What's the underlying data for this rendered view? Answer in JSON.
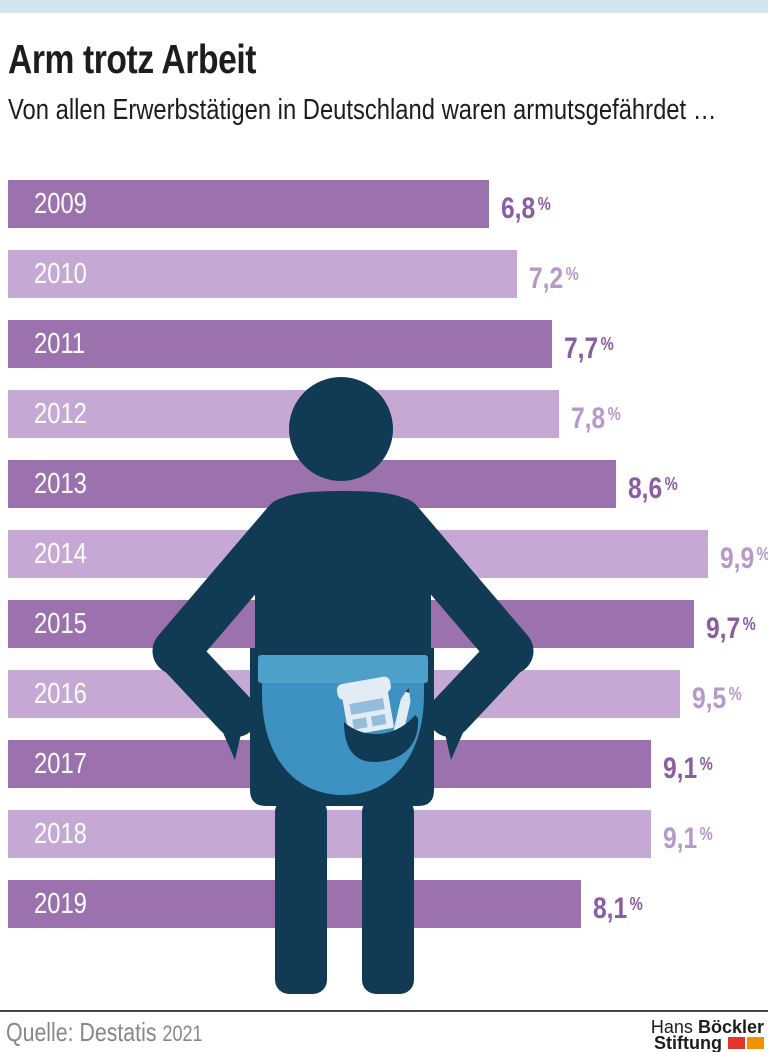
{
  "header": {
    "title": "Arm trotz Arbeit",
    "subtitle": "Von allen Erwerbstätigen in Deutschland waren armutsgefährdet …"
  },
  "chart_data": {
    "type": "bar",
    "orientation": "horizontal",
    "title": "Arm trotz Arbeit",
    "subtitle": "Von allen Erwerbstätigen in Deutschland waren armutsgefährdet …",
    "categories": [
      "2009",
      "2010",
      "2011",
      "2012",
      "2013",
      "2014",
      "2015",
      "2016",
      "2017",
      "2018",
      "2019"
    ],
    "values": [
      6.8,
      7.2,
      7.7,
      7.8,
      8.6,
      9.9,
      9.7,
      9.5,
      9.1,
      9.1,
      8.1
    ],
    "display_values": [
      "6,8",
      "7,2",
      "7,7",
      "7,8",
      "8,6",
      "9,9",
      "9,7",
      "9,5",
      "9,1",
      "9,1",
      "8,1"
    ],
    "unit": "%",
    "xlim": [
      0,
      10.5
    ],
    "grid": false,
    "legend": "none",
    "bar_style": "alternating dark/light purple, year label inside bar left, value label right of bar"
  },
  "theme": {
    "strip": "#d2e4ee",
    "title_text": "#1d1d1b",
    "bar_dark": "#9b72ad",
    "bar_light": "#c5a9d4",
    "value_dark": "#8a5ca2",
    "value_light": "#b698c9",
    "year_text": "#ffffff",
    "figure_body": "#113b54",
    "figure_skirt": "#3e92c1",
    "figure_belt": "#4da0ca",
    "paper": "#e3ecf4",
    "paper_stripe": "#93bddb",
    "divider": "#474747",
    "source_text": "#878787",
    "logo_text": "#1d1d1b",
    "logo_red": "#e5332d",
    "logo_orange": "#f39200"
  },
  "illustration": {
    "name": "person-with-empty-pockets",
    "elements": [
      "head",
      "torso",
      "arms-akimbo",
      "belt",
      "skirt-pocket",
      "receipt",
      "pencil",
      "legs"
    ]
  },
  "footer": {
    "source_label": "Quelle: Destatis",
    "source_year": "2021",
    "logo": {
      "line1_regular": "Hans",
      "line1_bold": "Böckler",
      "line2_bold": "Stiftung"
    }
  }
}
